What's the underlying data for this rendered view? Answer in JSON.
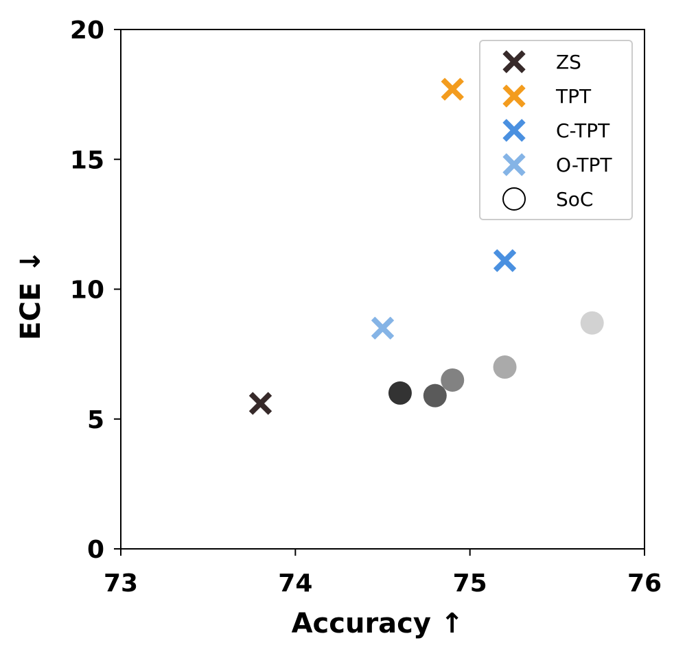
{
  "chart_data": {
    "type": "scatter",
    "xlabel": "Accuracy  ↑",
    "ylabel": "ECE  ↓",
    "xlim": [
      73,
      76
    ],
    "ylim": [
      0,
      20
    ],
    "xticks": [
      73,
      74,
      75,
      76
    ],
    "yticks": [
      0,
      5,
      10,
      15,
      20
    ],
    "xtick_labels": [
      "73",
      "74",
      "75",
      "76"
    ],
    "ytick_labels": [
      "0",
      "5",
      "10",
      "15",
      "20"
    ],
    "grid": false,
    "legend_position": "top-right",
    "series": [
      {
        "name": "ZS",
        "marker": "x-filled",
        "color": "#372a2a",
        "points": [
          {
            "x": 73.8,
            "y": 5.6
          }
        ]
      },
      {
        "name": "TPT",
        "marker": "x-filled",
        "color": "#f39c1e",
        "points": [
          {
            "x": 74.9,
            "y": 17.7
          }
        ]
      },
      {
        "name": "C-TPT",
        "marker": "x-filled",
        "color": "#4a90e0",
        "points": [
          {
            "x": 75.2,
            "y": 11.1
          }
        ]
      },
      {
        "name": "O-TPT",
        "marker": "x-filled",
        "color": "#85b4e6",
        "points": [
          {
            "x": 74.5,
            "y": 8.5
          }
        ]
      },
      {
        "name": "SoC",
        "marker": "circle",
        "color": "#ffffff",
        "points": [
          {
            "x": 74.6,
            "y": 6.0,
            "color": "#333333"
          },
          {
            "x": 74.8,
            "y": 5.9,
            "color": "#5a5a5a"
          },
          {
            "x": 74.9,
            "y": 6.5,
            "color": "#828282"
          },
          {
            "x": 75.2,
            "y": 7.0,
            "color": "#aaaaaa"
          },
          {
            "x": 75.7,
            "y": 8.7,
            "color": "#d2d2d2"
          }
        ]
      }
    ]
  }
}
